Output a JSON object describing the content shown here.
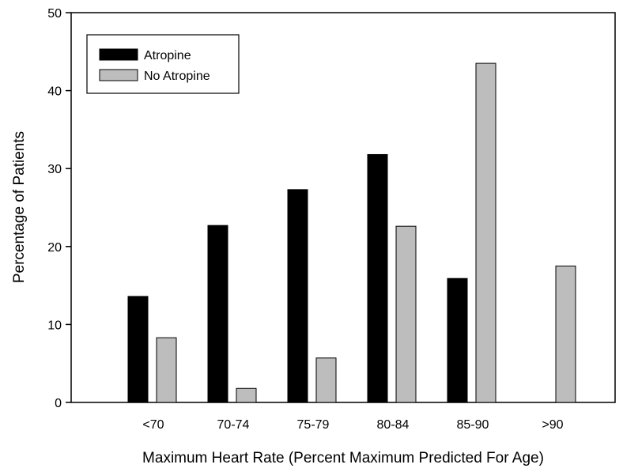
{
  "chart_data": {
    "type": "bar",
    "title": "",
    "xlabel": "Maximum Heart Rate (Percent Maximum Predicted For Age)",
    "ylabel": "Percentage of Patients",
    "categories": [
      "<70",
      "70-74",
      "75-79",
      "80-84",
      "85-90",
      ">90"
    ],
    "series": [
      {
        "name": "Atropine",
        "color": "#000000",
        "values": [
          13.6,
          22.7,
          27.3,
          31.8,
          15.9,
          0
        ]
      },
      {
        "name": "No Atropine",
        "color": "#bdbdbd",
        "values": [
          8.3,
          1.8,
          5.7,
          22.6,
          43.5,
          17.5
        ]
      }
    ],
    "ylim": [
      0,
      50
    ],
    "yticks": [
      0,
      10,
      20,
      30,
      40,
      50
    ],
    "grid": false,
    "legend_position": "top-left"
  }
}
